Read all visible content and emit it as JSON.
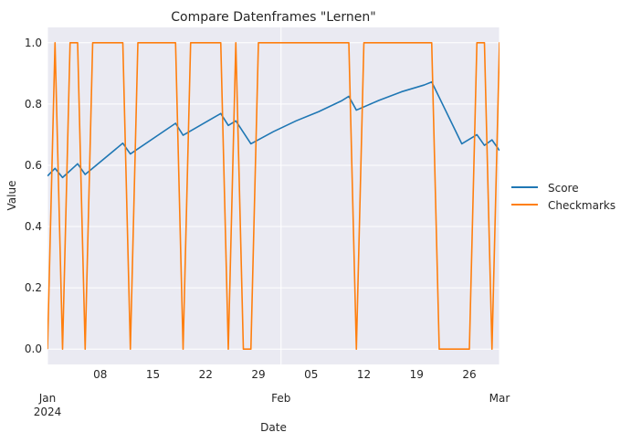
{
  "chart_data": {
    "type": "line",
    "title": "Compare Datenframes \"Lernen\"",
    "xlabel": "Date",
    "ylabel": "Value",
    "x_range": [
      "2024-01-01",
      "2024-03-01"
    ],
    "ylim": [
      -0.05,
      1.05
    ],
    "grid": true,
    "legend_position": "right",
    "x_major_ticks": [
      {
        "date": "2024-01-01",
        "label": "Jan",
        "sublabel": "2024"
      },
      {
        "date": "2024-02-01",
        "label": "Feb",
        "sublabel": ""
      },
      {
        "date": "2024-03-01",
        "label": "Mar",
        "sublabel": ""
      }
    ],
    "x_minor_ticks": [
      {
        "date": "2024-01-08",
        "label": "08"
      },
      {
        "date": "2024-01-15",
        "label": "15"
      },
      {
        "date": "2024-01-22",
        "label": "22"
      },
      {
        "date": "2024-01-29",
        "label": "29"
      },
      {
        "date": "2024-02-05",
        "label": "05"
      },
      {
        "date": "2024-02-12",
        "label": "12"
      },
      {
        "date": "2024-02-19",
        "label": "19"
      },
      {
        "date": "2024-02-26",
        "label": "26"
      }
    ],
    "y_ticks": [
      {
        "value": 0.0,
        "label": "0.0"
      },
      {
        "value": 0.2,
        "label": "0.2"
      },
      {
        "value": 0.4,
        "label": "0.4"
      },
      {
        "value": 0.6,
        "label": "0.6"
      },
      {
        "value": 0.8,
        "label": "0.8"
      },
      {
        "value": 1.0,
        "label": "1.0"
      }
    ],
    "series": [
      {
        "name": "Score",
        "color": "#1f77b4",
        "points": [
          {
            "x": "2024-01-01",
            "y": 0.565
          },
          {
            "x": "2024-01-02",
            "y": 0.59
          },
          {
            "x": "2024-01-03",
            "y": 0.56
          },
          {
            "x": "2024-01-05",
            "y": 0.605
          },
          {
            "x": "2024-01-06",
            "y": 0.57
          },
          {
            "x": "2024-01-11",
            "y": 0.672
          },
          {
            "x": "2024-01-12",
            "y": 0.637
          },
          {
            "x": "2024-01-18",
            "y": 0.737
          },
          {
            "x": "2024-01-19",
            "y": 0.698
          },
          {
            "x": "2024-01-24",
            "y": 0.769
          },
          {
            "x": "2024-01-25",
            "y": 0.73
          },
          {
            "x": "2024-01-26",
            "y": 0.745
          },
          {
            "x": "2024-01-28",
            "y": 0.67
          },
          {
            "x": "2024-01-31",
            "y": 0.71
          },
          {
            "x": "2024-02-03",
            "y": 0.745
          },
          {
            "x": "2024-02-06",
            "y": 0.775
          },
          {
            "x": "2024-02-09",
            "y": 0.81
          },
          {
            "x": "2024-02-10",
            "y": 0.825
          },
          {
            "x": "2024-02-11",
            "y": 0.78
          },
          {
            "x": "2024-02-14",
            "y": 0.812
          },
          {
            "x": "2024-02-17",
            "y": 0.84
          },
          {
            "x": "2024-02-20",
            "y": 0.862
          },
          {
            "x": "2024-02-21",
            "y": 0.872
          },
          {
            "x": "2024-02-25",
            "y": 0.67
          },
          {
            "x": "2024-02-27",
            "y": 0.7
          },
          {
            "x": "2024-02-28",
            "y": 0.665
          },
          {
            "x": "2024-02-29",
            "y": 0.683
          },
          {
            "x": "2024-03-01",
            "y": 0.648
          }
        ]
      },
      {
        "name": "Checkmarks",
        "color": "#ff7f0e",
        "points": [
          {
            "x": "2024-01-01",
            "y": 0
          },
          {
            "x": "2024-01-02",
            "y": 1
          },
          {
            "x": "2024-01-03",
            "y": 0
          },
          {
            "x": "2024-01-04",
            "y": 1
          },
          {
            "x": "2024-01-05",
            "y": 1
          },
          {
            "x": "2024-01-06",
            "y": 0
          },
          {
            "x": "2024-01-07",
            "y": 1
          },
          {
            "x": "2024-01-11",
            "y": 1
          },
          {
            "x": "2024-01-12",
            "y": 0
          },
          {
            "x": "2024-01-13",
            "y": 1
          },
          {
            "x": "2024-01-18",
            "y": 1
          },
          {
            "x": "2024-01-19",
            "y": 0
          },
          {
            "x": "2024-01-20",
            "y": 1
          },
          {
            "x": "2024-01-24",
            "y": 1
          },
          {
            "x": "2024-01-25",
            "y": 0
          },
          {
            "x": "2024-01-26",
            "y": 1
          },
          {
            "x": "2024-01-27",
            "y": 0
          },
          {
            "x": "2024-01-28",
            "y": 0
          },
          {
            "x": "2024-01-29",
            "y": 1
          },
          {
            "x": "2024-02-10",
            "y": 1
          },
          {
            "x": "2024-02-11",
            "y": 0
          },
          {
            "x": "2024-02-12",
            "y": 1
          },
          {
            "x": "2024-02-21",
            "y": 1
          },
          {
            "x": "2024-02-22",
            "y": 0
          },
          {
            "x": "2024-02-26",
            "y": 0
          },
          {
            "x": "2024-02-27",
            "y": 1
          },
          {
            "x": "2024-02-28",
            "y": 1
          },
          {
            "x": "2024-02-29",
            "y": 0
          },
          {
            "x": "2024-03-01",
            "y": 1
          },
          {
            "x": "2024-03-02",
            "y": 0
          }
        ]
      }
    ]
  }
}
